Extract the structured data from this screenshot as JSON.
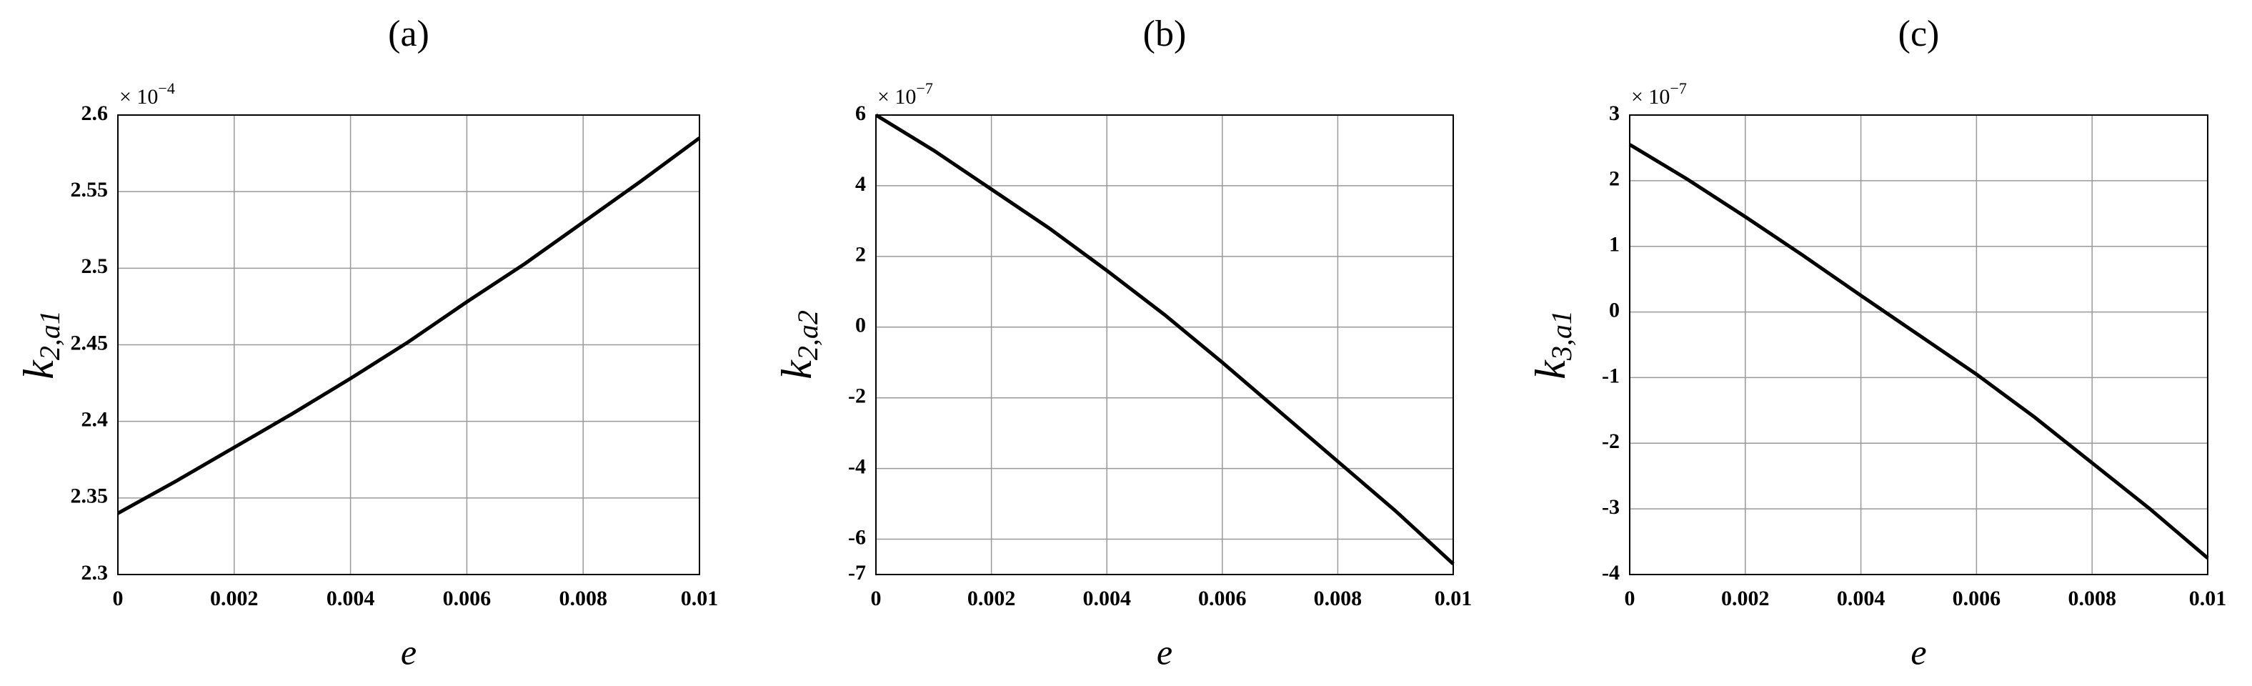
{
  "chart_data": [
    {
      "type": "line",
      "title": "(a)",
      "xlabel": "e",
      "ylabel": {
        "symbol": "k",
        "subscript": "2,a1"
      },
      "multiplier": {
        "base": "× 10",
        "exponent": "−4"
      },
      "x": [
        0,
        0.001,
        0.002,
        0.003,
        0.004,
        0.005,
        0.006,
        0.007,
        0.008,
        0.009,
        0.01
      ],
      "series": [
        {
          "color": "#000000",
          "values": [
            2.34,
            2.361,
            2.383,
            2.405,
            2.428,
            2.452,
            2.478,
            2.503,
            2.53,
            2.557,
            2.585
          ]
        }
      ],
      "xlim": [
        0,
        0.01
      ],
      "xticks": [
        0,
        0.002,
        0.004,
        0.006,
        0.008,
        0.01
      ],
      "ylim": [
        2.3,
        2.6
      ],
      "yticks": [
        2.3,
        2.35,
        2.4,
        2.45,
        2.5,
        2.55,
        2.6
      ],
      "grid": true
    },
    {
      "type": "line",
      "title": "(b)",
      "xlabel": "e",
      "ylabel": {
        "symbol": "k",
        "subscript": "2,a2"
      },
      "multiplier": {
        "base": "× 10",
        "exponent": "−7"
      },
      "x": [
        0,
        0.001,
        0.002,
        0.003,
        0.004,
        0.005,
        0.006,
        0.007,
        0.008,
        0.009,
        0.01
      ],
      "series": [
        {
          "color": "#000000",
          "values": [
            6.0,
            5.0,
            3.9,
            2.8,
            1.6,
            0.35,
            -1.0,
            -2.4,
            -3.8,
            -5.2,
            -6.7
          ]
        }
      ],
      "xlim": [
        0,
        0.01
      ],
      "xticks": [
        0,
        0.002,
        0.004,
        0.006,
        0.008,
        0.01
      ],
      "ylim": [
        -7,
        6
      ],
      "yticks": [
        -7,
        -6,
        -4,
        -2,
        0,
        2,
        4,
        6
      ],
      "grid": true
    },
    {
      "type": "line",
      "title": "(c)",
      "xlabel": "e",
      "ylabel": {
        "symbol": "k",
        "subscript": "3,a1"
      },
      "multiplier": {
        "base": "× 10",
        "exponent": "−7"
      },
      "x": [
        0,
        0.001,
        0.002,
        0.003,
        0.004,
        0.005,
        0.006,
        0.007,
        0.008,
        0.009,
        0.01
      ],
      "series": [
        {
          "color": "#000000",
          "values": [
            2.55,
            2.02,
            1.45,
            0.86,
            0.25,
            -0.35,
            -0.95,
            -1.6,
            -2.3,
            -3.0,
            -3.75
          ]
        }
      ],
      "xlim": [
        0,
        0.01
      ],
      "xticks": [
        0,
        0.002,
        0.004,
        0.006,
        0.008,
        0.01
      ],
      "ylim": [
        -4,
        3
      ],
      "yticks": [
        -4,
        -3,
        -2,
        -1,
        0,
        1,
        2,
        3
      ],
      "grid": true
    }
  ]
}
